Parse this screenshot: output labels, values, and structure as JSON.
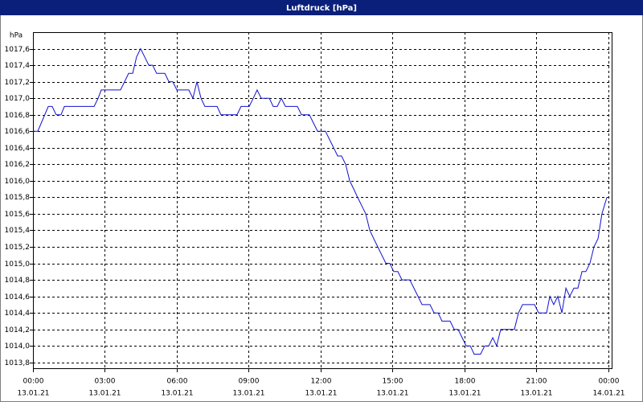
{
  "chart_data": {
    "type": "line",
    "title": "Luftdruck [hPa]",
    "y_label": "hPa",
    "xlim": [
      0,
      24.17
    ],
    "ylim": [
      1013.72,
      1017.8
    ],
    "xticks": [
      {
        "value": 0,
        "label": "00:00"
      },
      {
        "value": 3,
        "label": "03:00"
      },
      {
        "value": 6,
        "label": "06:00"
      },
      {
        "value": 9,
        "label": "09:00"
      },
      {
        "value": 12,
        "label": "12:00"
      },
      {
        "value": 15,
        "label": "15:00"
      },
      {
        "value": 18,
        "label": "18:00"
      },
      {
        "value": 21,
        "label": "21:00"
      },
      {
        "value": 24,
        "label": "00:00"
      }
    ],
    "xtick_dates": [
      "13.01.21",
      "13.01.21",
      "13.01.21",
      "13.01.21",
      "13.01.21",
      "13.01.21",
      "13.01.21",
      "13.01.21",
      "14.01.21"
    ],
    "yticks": [
      {
        "value": 1013.8,
        "label": "1013,8"
      },
      {
        "value": 1014.0,
        "label": "1014,0"
      },
      {
        "value": 1014.2,
        "label": "1014,2"
      },
      {
        "value": 1014.4,
        "label": "1014,4"
      },
      {
        "value": 1014.6,
        "label": "1014,6"
      },
      {
        "value": 1014.8,
        "label": "1014,8"
      },
      {
        "value": 1015.0,
        "label": "1015,0"
      },
      {
        "value": 1015.2,
        "label": "1015,2"
      },
      {
        "value": 1015.4,
        "label": "1015,4"
      },
      {
        "value": 1015.6,
        "label": "1015,6"
      },
      {
        "value": 1015.8,
        "label": "1015,8"
      },
      {
        "value": 1016.0,
        "label": "1016,0"
      },
      {
        "value": 1016.2,
        "label": "1016,2"
      },
      {
        "value": 1016.4,
        "label": "1016,4"
      },
      {
        "value": 1016.6,
        "label": "1016,6"
      },
      {
        "value": 1016.8,
        "label": "1016,8"
      },
      {
        "value": 1017.0,
        "label": "1017,0"
      },
      {
        "value": 1017.2,
        "label": "1017,2"
      },
      {
        "value": 1017.4,
        "label": "1017,4"
      },
      {
        "value": 1017.6,
        "label": "1017,6"
      }
    ],
    "grid": true,
    "series": [
      {
        "color": "#1010d0",
        "x": [
          0,
          0.2,
          0.64,
          0.8,
          0.97,
          1.17,
          1.31,
          2.55,
          2.72,
          2.85,
          3.65,
          3.82,
          3.99,
          4.16,
          4.32,
          4.49,
          4.66,
          4.83,
          4.99,
          5.16,
          5.5,
          5.67,
          5.83,
          6.0,
          6.5,
          6.67,
          6.84,
          7.01,
          7.17,
          7.68,
          7.84,
          8.51,
          8.68,
          9.02,
          9.19,
          9.35,
          9.52,
          9.86,
          10.02,
          10.19,
          10.36,
          10.53,
          11.03,
          11.2,
          11.53,
          11.7,
          11.87,
          12.2,
          12.37,
          12.54,
          12.71,
          12.87,
          13.04,
          13.21,
          13.38,
          13.54,
          13.71,
          13.88,
          14.05,
          14.21,
          14.38,
          14.55,
          14.72,
          14.88,
          15.05,
          15.22,
          15.39,
          15.72,
          15.89,
          16.06,
          16.23,
          16.56,
          16.73,
          16.9,
          17.06,
          17.4,
          17.57,
          17.73,
          17.9,
          18.07,
          18.24,
          18.4,
          18.67,
          18.84,
          19.01,
          19.18,
          19.34,
          19.51,
          20.08,
          20.25,
          20.42,
          20.92,
          21.09,
          21.42,
          21.56,
          21.72,
          21.89,
          22.06,
          22.23,
          22.39,
          22.56,
          22.73,
          22.9,
          23.06,
          23.23,
          23.4,
          23.57,
          23.73,
          23.94
        ],
        "values": [
          1016.6,
          1016.6,
          1016.9,
          1016.9,
          1016.8,
          1016.8,
          1016.9,
          1016.9,
          1017.0,
          1017.1,
          1017.1,
          1017.2,
          1017.3,
          1017.3,
          1017.5,
          1017.6,
          1017.5,
          1017.4,
          1017.4,
          1017.3,
          1017.3,
          1017.2,
          1017.2,
          1017.1,
          1017.1,
          1017.0,
          1017.2,
          1017.0,
          1016.9,
          1016.9,
          1016.8,
          1016.8,
          1016.9,
          1016.9,
          1017.0,
          1017.1,
          1017.0,
          1017.0,
          1016.9,
          1016.9,
          1017.0,
          1016.9,
          1016.9,
          1016.8,
          1016.8,
          1016.7,
          1016.6,
          1016.6,
          1016.5,
          1016.4,
          1016.3,
          1016.3,
          1016.2,
          1016.0,
          1015.9,
          1015.8,
          1015.7,
          1015.6,
          1015.4,
          1015.3,
          1015.2,
          1015.1,
          1015.0,
          1015.0,
          1014.9,
          1014.9,
          1014.8,
          1014.8,
          1014.7,
          1014.6,
          1014.5,
          1014.5,
          1014.4,
          1014.4,
          1014.3,
          1014.3,
          1014.2,
          1014.2,
          1014.1,
          1014.0,
          1014.0,
          1013.9,
          1013.9,
          1014.0,
          1014.0,
          1014.1,
          1014.0,
          1014.2,
          1014.2,
          1014.4,
          1014.5,
          1014.5,
          1014.4,
          1014.4,
          1014.6,
          1014.5,
          1014.6,
          1014.4,
          1014.7,
          1014.6,
          1014.7,
          1014.7,
          1014.9,
          1014.9,
          1015.0,
          1015.2,
          1015.3,
          1015.6,
          1015.8
        ]
      }
    ]
  }
}
